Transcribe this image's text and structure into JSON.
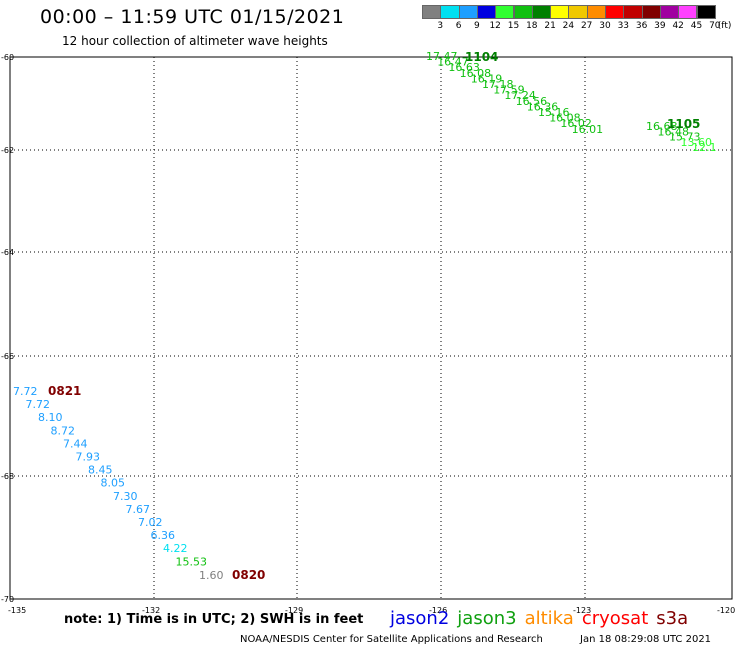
{
  "header": {
    "title": "00:00 – 11:59 UTC 01/15/2021",
    "subtitle": "12 hour collection of altimeter wave heights"
  },
  "legend": {
    "unit": "(ft)",
    "swatches": [
      {
        "label": "3",
        "color": "#808080"
      },
      {
        "label": "6",
        "color": "#00e0f0"
      },
      {
        "label": "9",
        "color": "#1e9fff"
      },
      {
        "label": "12",
        "color": "#0000e0"
      },
      {
        "label": "15",
        "color": "#30ff30"
      },
      {
        "label": "18",
        "color": "#10c010"
      },
      {
        "label": "21",
        "color": "#008000"
      },
      {
        "label": "24",
        "color": "#ffff00"
      },
      {
        "label": "27",
        "color": "#f0c800"
      },
      {
        "label": "30",
        "color": "#ff8c00"
      },
      {
        "label": "33",
        "color": "#ff0000"
      },
      {
        "label": "36",
        "color": "#c00000"
      },
      {
        "label": "39",
        "color": "#800000"
      },
      {
        "label": "42",
        "color": "#a000a0"
      },
      {
        "label": "45",
        "color": "#ff40ff"
      },
      {
        "label": "70",
        "color": "#000000"
      }
    ]
  },
  "map": {
    "lon_ticks": [
      "-135",
      "-132",
      "-129",
      "-126",
      "-123",
      "-120"
    ],
    "lat_ticks": [
      "-60",
      "-62",
      "-64",
      "-66",
      "-68",
      "-70"
    ]
  },
  "tracks": [
    {
      "pass_label": "1104",
      "label_color": "#008000",
      "points": [
        {
          "v": "17.47",
          "color": "#10c010"
        },
        {
          "v": "16.47",
          "color": "#10c010"
        },
        {
          "v": "16.63",
          "color": "#10c010"
        },
        {
          "v": "16.08",
          "color": "#10c010"
        },
        {
          "v": "16.19",
          "color": "#10c010"
        },
        {
          "v": "17.18",
          "color": "#10c010"
        },
        {
          "v": "17.59",
          "color": "#10c010"
        },
        {
          "v": "17.24",
          "color": "#10c010"
        },
        {
          "v": "16.56",
          "color": "#10c010"
        },
        {
          "v": "16.36",
          "color": "#10c010"
        },
        {
          "v": "15.16",
          "color": "#10c010"
        },
        {
          "v": "16.08",
          "color": "#10c010"
        },
        {
          "v": "16.02",
          "color": "#10c010"
        },
        {
          "v": "16.01",
          "color": "#10c010"
        }
      ]
    },
    {
      "pass_label": "1105",
      "label_color": "#008000",
      "points": [
        {
          "v": "16.68",
          "color": "#10c010"
        },
        {
          "v": "16.48",
          "color": "#10c010"
        },
        {
          "v": "15.73",
          "color": "#10c010"
        },
        {
          "v": "13.60",
          "color": "#30ff30"
        },
        {
          "v": "12.1",
          "color": "#30ff30"
        }
      ]
    },
    {
      "pass_label": "0821",
      "label_color": "#800000",
      "points": [
        {
          "v": "7.72",
          "color": "#1e9fff"
        },
        {
          "v": "7.72",
          "color": "#1e9fff"
        },
        {
          "v": "8.10",
          "color": "#1e9fff"
        },
        {
          "v": "8.72",
          "color": "#1e9fff"
        },
        {
          "v": "7.44",
          "color": "#1e9fff"
        },
        {
          "v": "7.93",
          "color": "#1e9fff"
        },
        {
          "v": "8.45",
          "color": "#1e9fff"
        },
        {
          "v": "8.05",
          "color": "#1e9fff"
        },
        {
          "v": "7.30",
          "color": "#1e9fff"
        },
        {
          "v": "7.67",
          "color": "#1e9fff"
        },
        {
          "v": "7.02",
          "color": "#1e9fff"
        },
        {
          "v": "6.36",
          "color": "#1e9fff"
        },
        {
          "v": "4.22",
          "color": "#00e0f0"
        },
        {
          "v": "15.53",
          "color": "#10c010"
        }
      ]
    },
    {
      "pass_label": "0820",
      "label_color": "#800000",
      "points": [
        {
          "v": "1.60",
          "color": "#808080"
        }
      ]
    }
  ],
  "note": "note: 1) Time is in UTC; 2) SWH is in feet",
  "satellites": [
    {
      "name": "jason2",
      "color": "#0000e0"
    },
    {
      "name": "jason3",
      "color": "#10a010"
    },
    {
      "name": "altika",
      "color": "#ff8c00"
    },
    {
      "name": "cryosat",
      "color": "#ff0000"
    },
    {
      "name": "s3a",
      "color": "#800000"
    }
  ],
  "footer": {
    "credit": "NOAA/NESDIS Center for Satellite Applications and Research",
    "timestamp": "Jan 18 08:29:08 UTC 2021"
  }
}
